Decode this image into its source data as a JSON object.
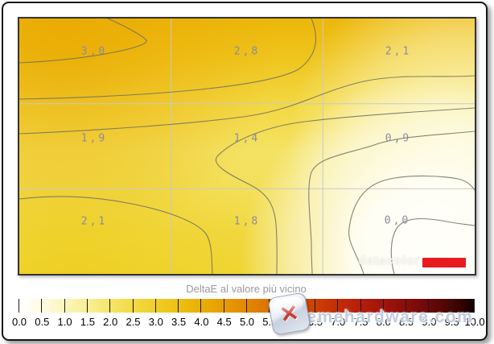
{
  "chart_data": {
    "type": "heatmap",
    "title": "DeltaE al valore più vicino",
    "rows": 3,
    "cols": 3,
    "values": [
      [
        3.0,
        2.8,
        2.1
      ],
      [
        1.9,
        1.4,
        0.9
      ],
      [
        2.1,
        1.8,
        0.0
      ]
    ],
    "value_labels": [
      [
        "3,0",
        "2,8",
        "2,1"
      ],
      [
        "1,9",
        "1,4",
        "0,9"
      ],
      [
        "2,1",
        "1,8",
        "0,0"
      ]
    ],
    "colorbar_range": [
      0.0,
      10.0
    ],
    "colorbar_step": 0.5,
    "grid": "on",
    "legend_position": "bottom"
  },
  "plot": {
    "value_label_color": "#8b8b9b",
    "grid_color": "#c9c9c9",
    "contour_color": "#6f6f5f"
  },
  "colorbar": {
    "tick_labels": [
      "0.0",
      "0.5",
      "1.0",
      "1.5",
      "2.0",
      "2.5",
      "3.0",
      "3.5",
      "4.0",
      "4.5",
      "5.0",
      "5.5",
      "6.0",
      "6.5",
      "7.0",
      "7.5",
      "8.0",
      "8.5",
      "9.0",
      "9.5",
      "10.0"
    ],
    "gradient": [
      "#ffffff",
      "#fffbe4",
      "#fbf5bc",
      "#f8ef94",
      "#f5e569",
      "#f2da45",
      "#f0cd28",
      "#edbf12",
      "#eaae05",
      "#e79c00",
      "#e28700",
      "#dc7000",
      "#d55700",
      "#cc4003",
      "#c22c08",
      "#b41d0b",
      "#a1140c",
      "#880e0b",
      "#6a0908",
      "#460504",
      "#120100"
    ],
    "tick_color": "#1c1c1c",
    "label_color": "#000000"
  },
  "watermarks": {
    "plot_text": "datacolor",
    "logo_color": "#e8191f",
    "site_text": "xtremehardware.com"
  },
  "frame": {
    "bg": "#ffffff",
    "border_color": "#161616"
  }
}
